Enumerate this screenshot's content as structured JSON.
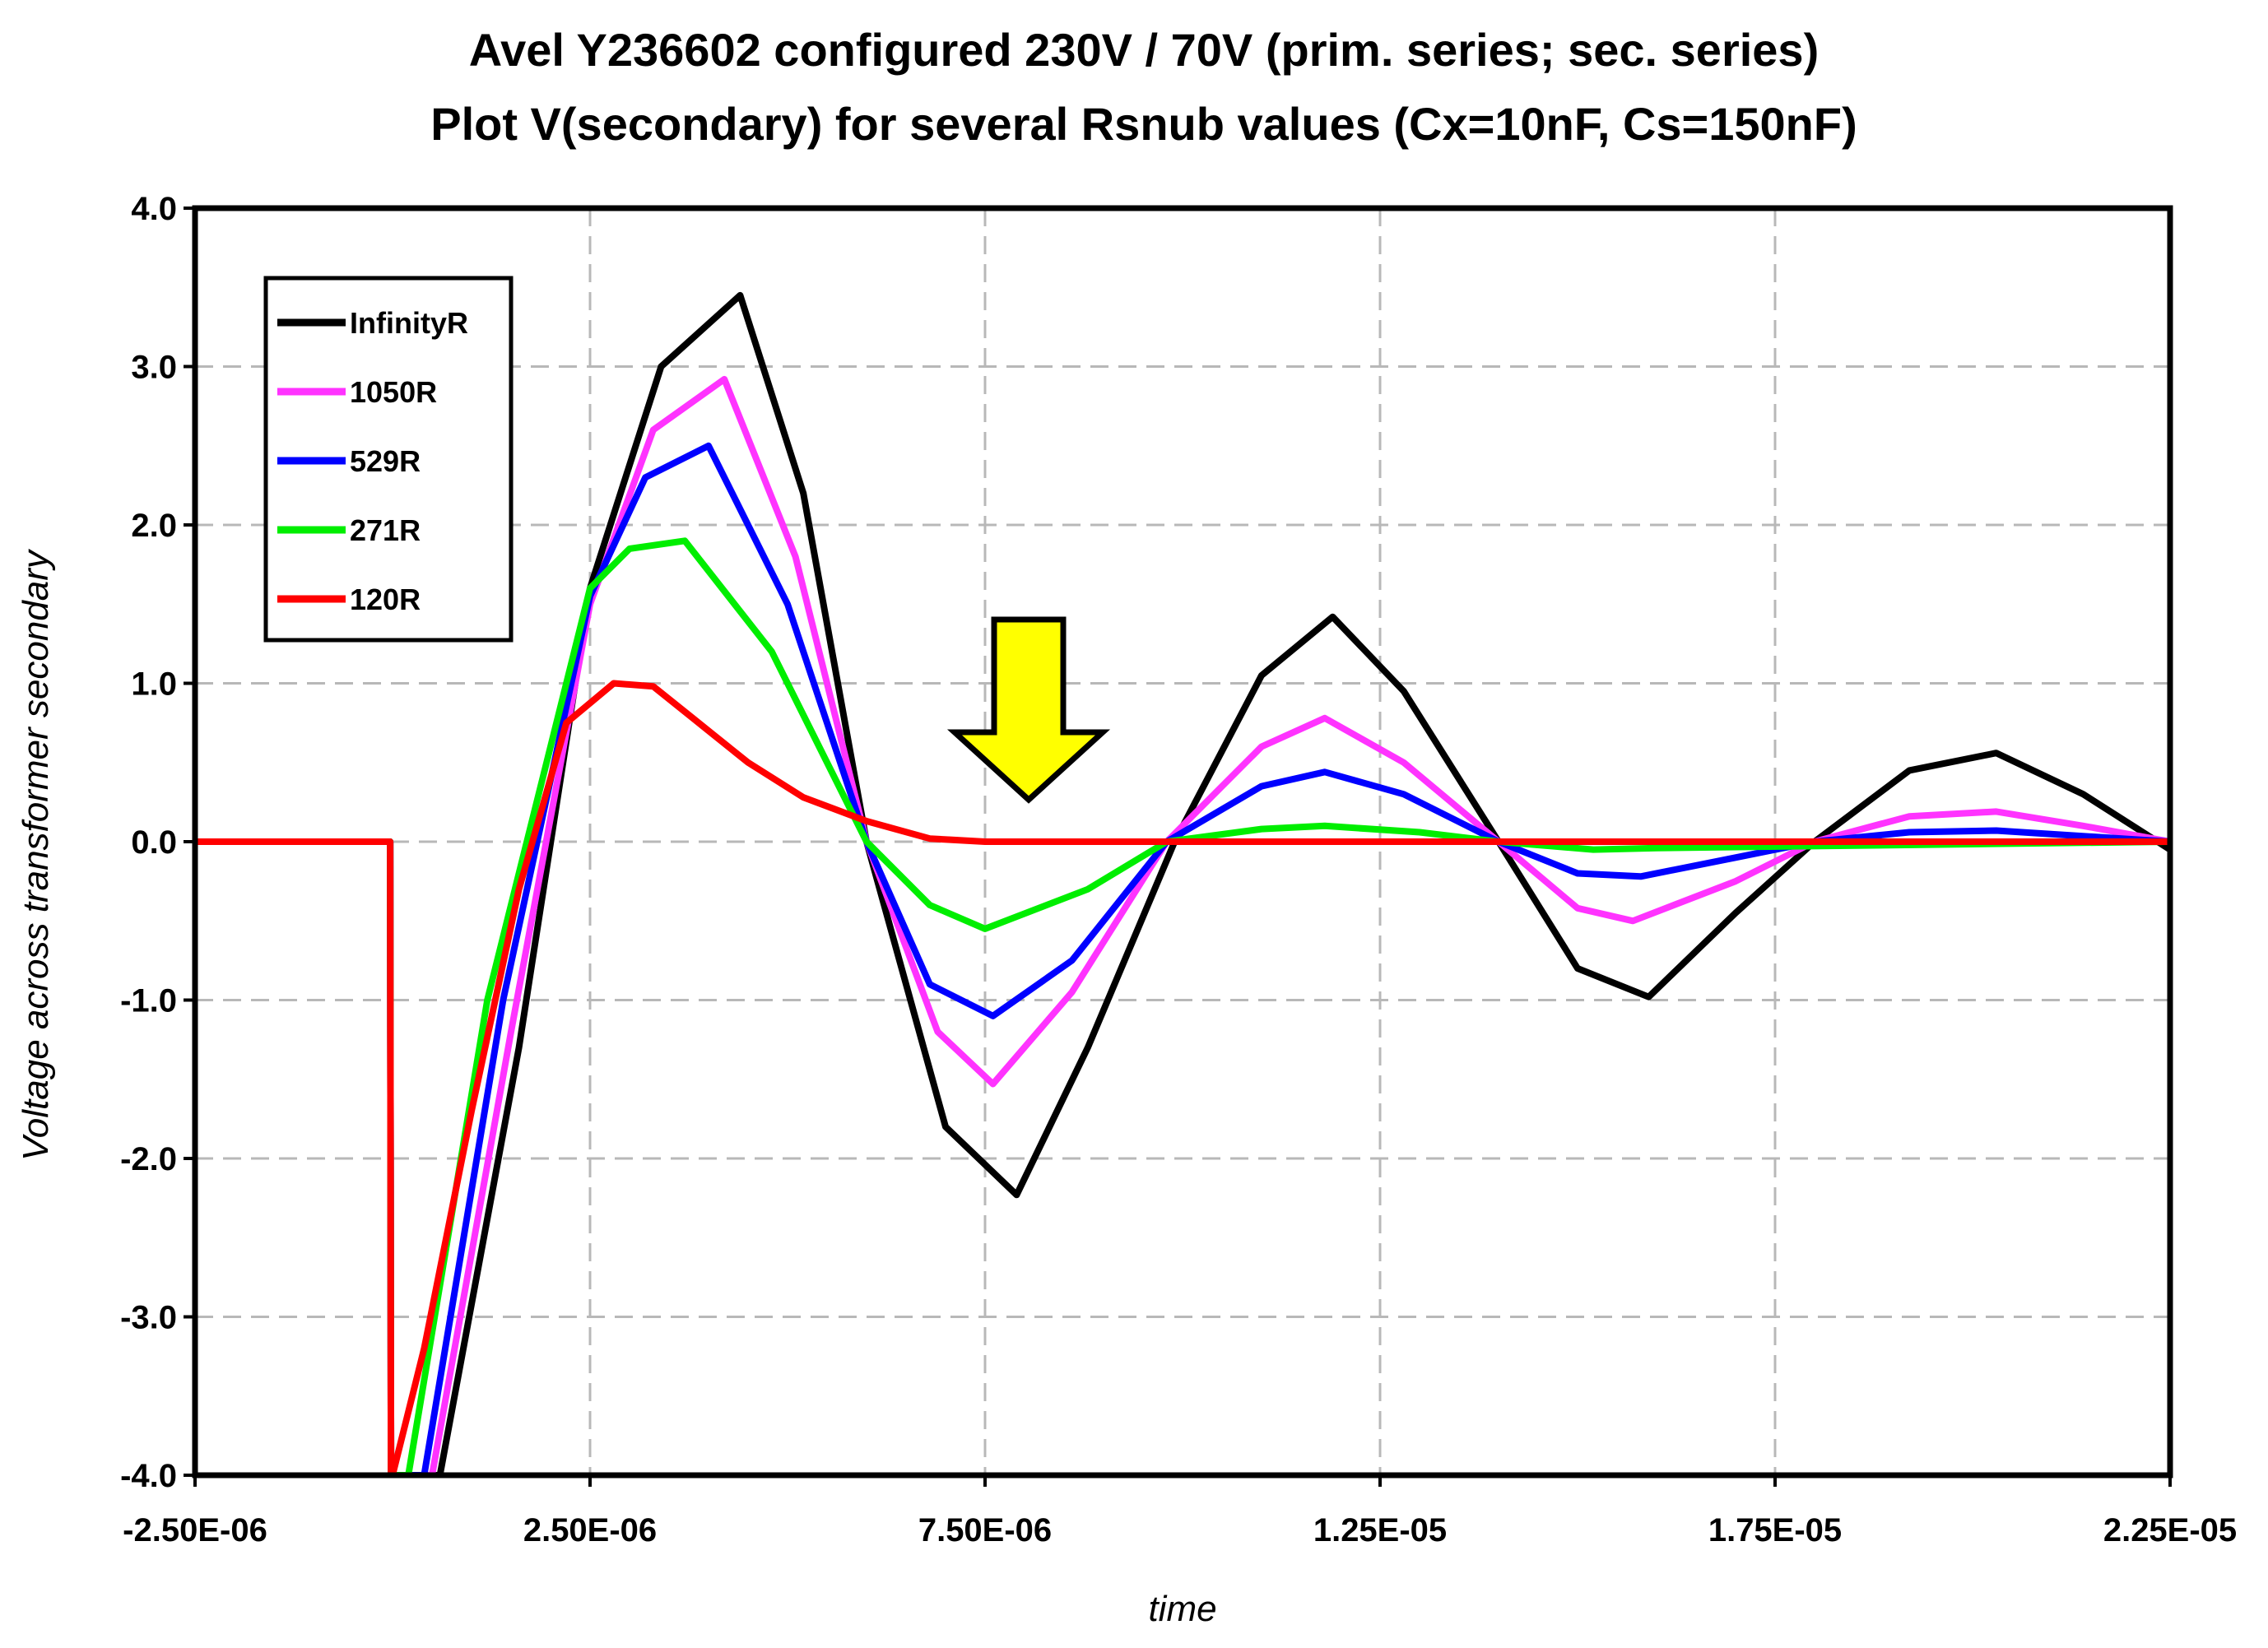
{
  "chart_data": {
    "type": "line",
    "title": "Avel Y236602 configured 230V / 70V (prim. series; sec. series)",
    "subtitle": "Plot V(secondary) for several Rsnub values (Cx=10nF, Cs=150nF)",
    "xlabel": "time",
    "ylabel": "Voltage across transformer secondary",
    "xlim": [
      -2.5e-06,
      2.25e-05
    ],
    "ylim": [
      -4.0,
      4.0
    ],
    "xticks": [
      -2.5e-06,
      2.5e-06,
      7.5e-06,
      1.25e-05,
      1.75e-05,
      2.25e-05
    ],
    "xtick_labels": [
      "-2.50E-06",
      "2.50E-06",
      "7.50E-06",
      "1.25E-05",
      "1.75E-05",
      "2.25E-05"
    ],
    "yticks": [
      -4.0,
      -3.0,
      -2.0,
      -1.0,
      0.0,
      1.0,
      2.0,
      3.0,
      4.0
    ],
    "ytick_labels": [
      "-4.0",
      "-3.0",
      "-2.0",
      "-1.0",
      "0.0",
      "1.0",
      "2.0",
      "3.0",
      "4.0"
    ],
    "grid": true,
    "legend_position": "top-left",
    "annotation": "downward yellow arrow above trough near 8.0E-06",
    "series": [
      {
        "name": "InfinityR",
        "color": "#000000",
        "x": [
          -2.5e-06,
          -3e-08,
          -2e-08,
          6e-07,
          1.6e-06,
          2.5e-06,
          3.4e-06,
          4.4e-06,
          5.2e-06,
          6e-06,
          7e-06,
          7.9e-06,
          8.8e-06,
          9.9e-06,
          1.1e-05,
          1.19e-05,
          1.28e-05,
          1.4e-05,
          1.5e-05,
          1.59e-05,
          1.7e-05,
          1.8e-05,
          1.92e-05,
          2.03e-05,
          2.14e-05,
          2.25e-05
        ],
        "y": [
          0.0,
          0.0,
          -4.0,
          -4.0,
          -1.3,
          1.6,
          3.0,
          3.45,
          2.2,
          0.0,
          -1.8,
          -2.23,
          -1.3,
          0.0,
          1.05,
          1.42,
          0.95,
          0.0,
          -0.8,
          -0.98,
          -0.45,
          0.0,
          0.45,
          0.56,
          0.3,
          -0.05
        ]
      },
      {
        "name": "1050R",
        "color": "#ff33ff",
        "x": [
          -2.5e-06,
          -3e-08,
          -2e-08,
          5e-07,
          1.5e-06,
          2.5e-06,
          3.3e-06,
          4.2e-06,
          5.1e-06,
          6e-06,
          6.9e-06,
          7.6e-06,
          8.6e-06,
          9.8e-06,
          1.1e-05,
          1.18e-05,
          1.28e-05,
          1.4e-05,
          1.5e-05,
          1.57e-05,
          1.7e-05,
          1.8e-05,
          1.92e-05,
          2.03e-05,
          2.14e-05,
          2.25e-05
        ],
        "y": [
          0.0,
          0.0,
          -4.0,
          -4.0,
          -1.2,
          1.5,
          2.6,
          2.92,
          1.8,
          0.0,
          -1.2,
          -1.53,
          -0.95,
          0.0,
          0.6,
          0.78,
          0.5,
          0.0,
          -0.42,
          -0.5,
          -0.25,
          0.0,
          0.16,
          0.19,
          0.1,
          0.0
        ]
      },
      {
        "name": "529R",
        "color": "#0000ff",
        "x": [
          -2.5e-06,
          -3e-08,
          -2e-08,
          4e-07,
          1.4e-06,
          2.5e-06,
          3.2e-06,
          4e-06,
          5e-06,
          6e-06,
          6.8e-06,
          7.6e-06,
          8.6e-06,
          9.8e-06,
          1.1e-05,
          1.18e-05,
          1.28e-05,
          1.4e-05,
          1.5e-05,
          1.58e-05,
          1.7e-05,
          1.8e-05,
          1.92e-05,
          2.03e-05,
          2.25e-05
        ],
        "y": [
          0.0,
          0.0,
          -4.0,
          -4.0,
          -1.0,
          1.55,
          2.3,
          2.5,
          1.5,
          0.0,
          -0.9,
          -1.1,
          -0.75,
          0.0,
          0.35,
          0.44,
          0.3,
          0.0,
          -0.2,
          -0.22,
          -0.1,
          0.0,
          0.06,
          0.07,
          0.0
        ]
      },
      {
        "name": "271R",
        "color": "#00ee00",
        "x": [
          -2.5e-06,
          -3e-08,
          -2e-08,
          2e-07,
          1.2e-06,
          2.5e-06,
          3e-06,
          3.7e-06,
          4.8e-06,
          6e-06,
          6.8e-06,
          7.5e-06,
          8.8e-06,
          9.8e-06,
          1.1e-05,
          1.18e-05,
          1.3e-05,
          1.4e-05,
          1.52e-05,
          1.6e-05,
          2.25e-05
        ],
        "y": [
          0.0,
          0.0,
          -4.0,
          -4.0,
          -1.0,
          1.6,
          1.85,
          1.9,
          1.2,
          0.0,
          -0.4,
          -0.55,
          -0.3,
          0.0,
          0.08,
          0.1,
          0.06,
          0.0,
          -0.05,
          -0.04,
          0.0
        ]
      },
      {
        "name": "120R",
        "color": "#ff0000",
        "x": [
          -2.5e-06,
          -3e-08,
          -2e-08,
          0.0,
          4e-07,
          1e-06,
          1.6e-06,
          2.2e-06,
          2.8e-06,
          3.3e-06,
          3.8e-06,
          4.5e-06,
          5.2e-06,
          6e-06,
          6.8e-06,
          7.5e-06,
          2.25e-05
        ],
        "y": [
          0.0,
          0.0,
          -4.0,
          -4.0,
          -3.2,
          -1.7,
          -0.3,
          0.75,
          1.0,
          0.98,
          0.78,
          0.5,
          0.28,
          0.13,
          0.02,
          0.0,
          0.0
        ]
      }
    ]
  }
}
